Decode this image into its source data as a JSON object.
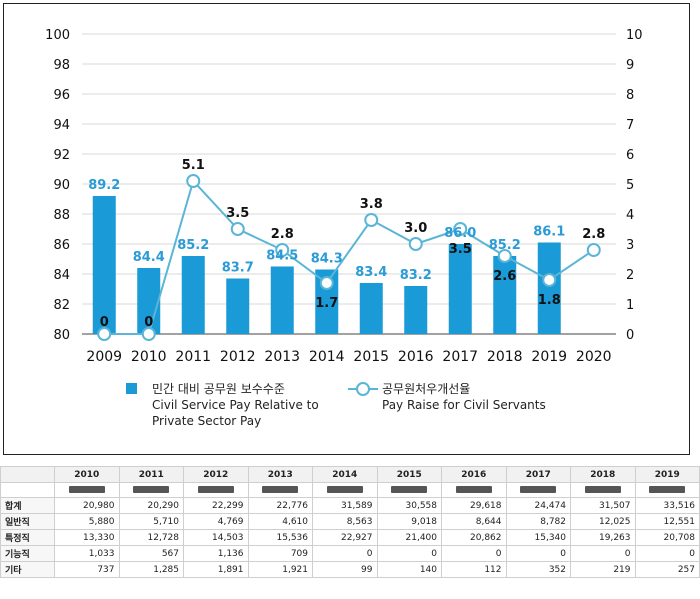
{
  "chart_data": {
    "type": "bar",
    "categories": [
      "2009",
      "2010",
      "2011",
      "2012",
      "2013",
      "2014",
      "2015",
      "2016",
      "2017",
      "2018",
      "2019",
      "2020"
    ],
    "series": [
      {
        "name": "민간 대비 공무원 보수수준 Civil Service Pay Relative to Private Sector Pay",
        "type": "bar",
        "axis": "left",
        "values": [
          89.2,
          84.4,
          85.2,
          83.7,
          84.5,
          84.3,
          83.4,
          83.2,
          86.0,
          85.2,
          86.1,
          null
        ],
        "labels": [
          "89.2",
          "84.4",
          "85.2",
          "83.7",
          "84.5",
          "84.3",
          "83.4",
          "83.2",
          "86.0",
          "85.2",
          "86.1",
          ""
        ]
      },
      {
        "name": "공무원처우개선율 Pay Raise for Civil Servants",
        "type": "line",
        "axis": "right",
        "values": [
          0,
          0,
          5.1,
          3.5,
          2.8,
          1.7,
          3.8,
          3.0,
          3.5,
          2.6,
          1.8,
          2.8
        ],
        "labels": [
          "0",
          "0",
          "5.1",
          "3.5",
          "2.8",
          "1.7",
          "3.8",
          "3.0",
          "3.5",
          "2.6",
          "1.8",
          "2.8"
        ]
      }
    ],
    "y_left": {
      "min": 80,
      "max": 100,
      "ticks": [
        "80",
        "82",
        "84",
        "86",
        "88",
        "90",
        "92",
        "94",
        "96",
        "98",
        "100"
      ]
    },
    "y_right": {
      "min": 0,
      "max": 10,
      "ticks": [
        "0",
        "1",
        "2",
        "3",
        "4",
        "5",
        "6",
        "7",
        "8",
        "9",
        "10"
      ]
    },
    "legend": [
      {
        "line1": "민간 대비 공무원 보수수준",
        "line2": "Civil Service Pay Relative to",
        "line3": "Private Sector Pay"
      },
      {
        "line1": "공무원처우개선율",
        "line2": "Pay Raise for Civil Servants",
        "line3": ""
      }
    ],
    "legend_position": "bottom",
    "grid": true,
    "colors": {
      "bar": "#1a9ad6",
      "line": "#5ab5d6",
      "marker_fill": "#ffffff",
      "grid": "#d9d9d9"
    }
  },
  "table": {
    "years": [
      "2010",
      "2011",
      "2012",
      "2013",
      "2014",
      "2015",
      "2016",
      "2017",
      "2018",
      "2019"
    ],
    "rows": [
      {
        "label": "합계",
        "values": [
          "20,980",
          "20,290",
          "22,299",
          "22,776",
          "31,589",
          "30,558",
          "29,618",
          "24,474",
          "31,507",
          "33,516"
        ]
      },
      {
        "label": "일반직",
        "values": [
          "5,880",
          "5,710",
          "4,769",
          "4,610",
          "8,563",
          "9,018",
          "8,644",
          "8,782",
          "12,025",
          "12,551"
        ]
      },
      {
        "label": "특정직",
        "values": [
          "13,330",
          "12,728",
          "14,503",
          "15,536",
          "22,927",
          "21,400",
          "20,862",
          "15,340",
          "19,263",
          "20,708"
        ]
      },
      {
        "label": "기능직",
        "values": [
          "1,033",
          "567",
          "1,136",
          "709",
          "0",
          "0",
          "0",
          "0",
          "0",
          "0"
        ]
      },
      {
        "label": "기타",
        "values": [
          "737",
          "1,285",
          "1,891",
          "1,921",
          "99",
          "140",
          "112",
          "352",
          "219",
          "257"
        ]
      }
    ]
  }
}
